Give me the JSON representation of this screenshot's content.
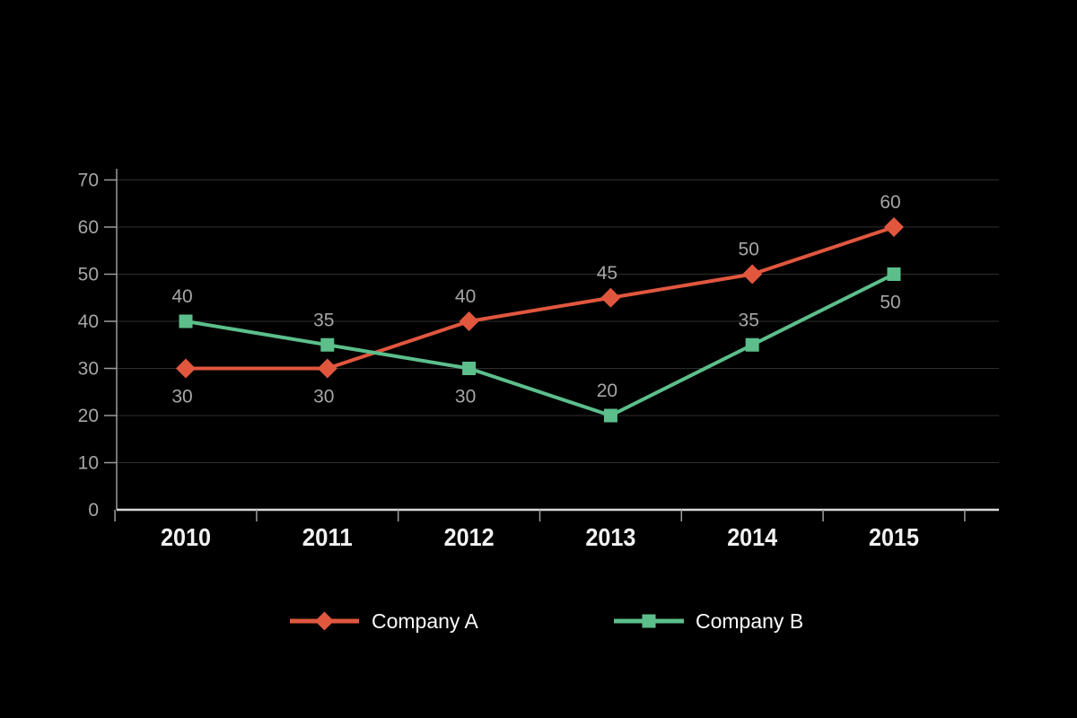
{
  "chart_data": {
    "type": "line",
    "title": "",
    "xlabel": "",
    "ylabel": "",
    "categories": [
      "2010",
      "2011",
      "2012",
      "2013",
      "2014",
      "2015"
    ],
    "series": [
      {
        "name": "Company A",
        "marker": "diamond",
        "color": "#e1573e",
        "values": [
          30,
          30,
          40,
          45,
          50,
          60
        ],
        "label_positions": [
          "below",
          "below",
          "above",
          "above",
          "above",
          "above"
        ]
      },
      {
        "name": "Company B",
        "marker": "square",
        "color": "#5cbf8b",
        "values": [
          40,
          35,
          30,
          20,
          35,
          50
        ],
        "label_positions": [
          "above",
          "above",
          "below",
          "above",
          "above",
          "below"
        ]
      }
    ],
    "ylim": [
      0,
      70
    ],
    "ytick_step": 10,
    "yticks": [
      0,
      10,
      20,
      30,
      40,
      50,
      60,
      70
    ],
    "grid": true,
    "show_data_labels": true,
    "legend_position": "bottom"
  },
  "theme": {
    "background": "#000000",
    "grid_color": "#2e2e2e",
    "x_axis_color": "#d8d8d8",
    "y_axis_color": "#9c9c9c",
    "tick_color": "#9c9c9c",
    "y_label_color": "#a6a6a6",
    "x_label_color": "#f2f2f2",
    "data_label_color": "#a6a6a6",
    "legend_text_color": "#fafafa"
  }
}
